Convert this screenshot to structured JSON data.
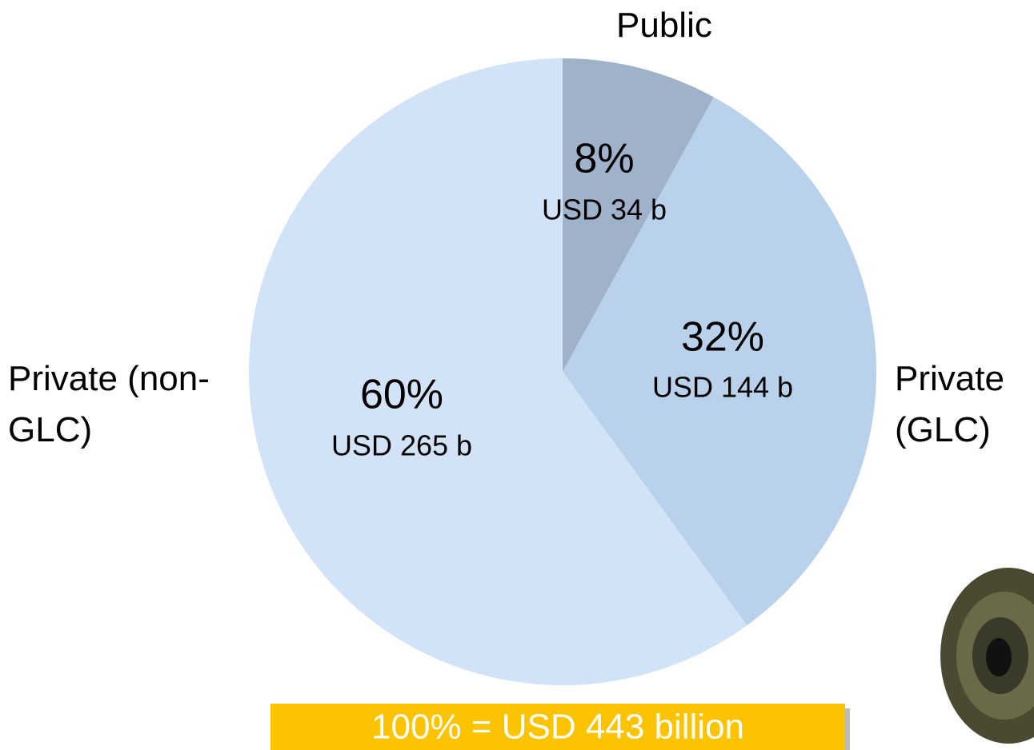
{
  "chart_data": {
    "type": "pie",
    "categories": [
      "Public",
      "Private (GLC)",
      "Private (non-GLC)"
    ],
    "values": [
      8,
      32,
      60
    ],
    "value_labels": [
      "8%",
      "32%",
      "60%"
    ],
    "amount_labels": [
      "USD 34 b",
      "USD 144 b",
      "USD 265 b"
    ],
    "colors": [
      "#9fb2c9",
      "#b9d1ea",
      "#d2e3f8"
    ],
    "note": "100% = USD 443 billion"
  }
}
